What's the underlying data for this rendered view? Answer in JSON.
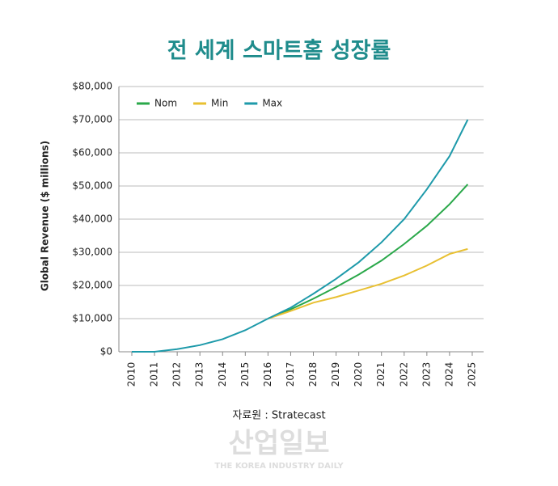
{
  "chart_data": {
    "type": "line",
    "title": "전 세계 스마트홈 성장률",
    "ylabel": "Global Revenue ($ millions)",
    "source": "자료원 : Stratecast",
    "watermark": "산업일보",
    "watermark_sub": "THE KOREA INDUSTRY DAILY",
    "x": [
      2010,
      2011,
      2012,
      2013,
      2014,
      2015,
      2016,
      2017,
      2018,
      2019,
      2020,
      2021,
      2022,
      2023,
      2024,
      2024.8
    ],
    "series": [
      {
        "name": "Nom",
        "color": "#2aa84a",
        "values": [
          null,
          null,
          null,
          null,
          null,
          null,
          10000,
          12800,
          16000,
          19500,
          23300,
          27500,
          32500,
          38000,
          44500,
          50500
        ]
      },
      {
        "name": "Min",
        "color": "#e8c032",
        "values": [
          null,
          null,
          null,
          null,
          null,
          null,
          10000,
          12300,
          14800,
          16500,
          18500,
          20500,
          23000,
          26000,
          29500,
          31000
        ]
      },
      {
        "name": "Max",
        "color": "#1e9aaa",
        "values": [
          0,
          0,
          800,
          2000,
          3800,
          6500,
          10000,
          13300,
          17500,
          22000,
          27000,
          33000,
          40000,
          49000,
          59000,
          70000
        ]
      }
    ],
    "xlim": [
      2009.43,
      2025.5
    ],
    "xticks": [
      2010,
      2011,
      2012,
      2013,
      2014,
      2015,
      2016,
      2017,
      2018,
      2019,
      2020,
      2021,
      2022,
      2023,
      2024,
      2025
    ],
    "ylim": [
      0,
      80000
    ],
    "yticks": [
      {
        "value": 0,
        "label": "$0"
      },
      {
        "value": 10000,
        "label": "$10,000"
      },
      {
        "value": 20000,
        "label": "$20,000"
      },
      {
        "value": 30000,
        "label": "$30,000"
      },
      {
        "value": 40000,
        "label": "$40,000"
      },
      {
        "value": 50000,
        "label": "$50,000"
      },
      {
        "value": 60000,
        "label": "$60,000"
      },
      {
        "value": 70000,
        "label": "$70,000"
      },
      {
        "value": 80000,
        "label": "$80,000"
      }
    ],
    "grid": true,
    "legend": "top-left"
  }
}
